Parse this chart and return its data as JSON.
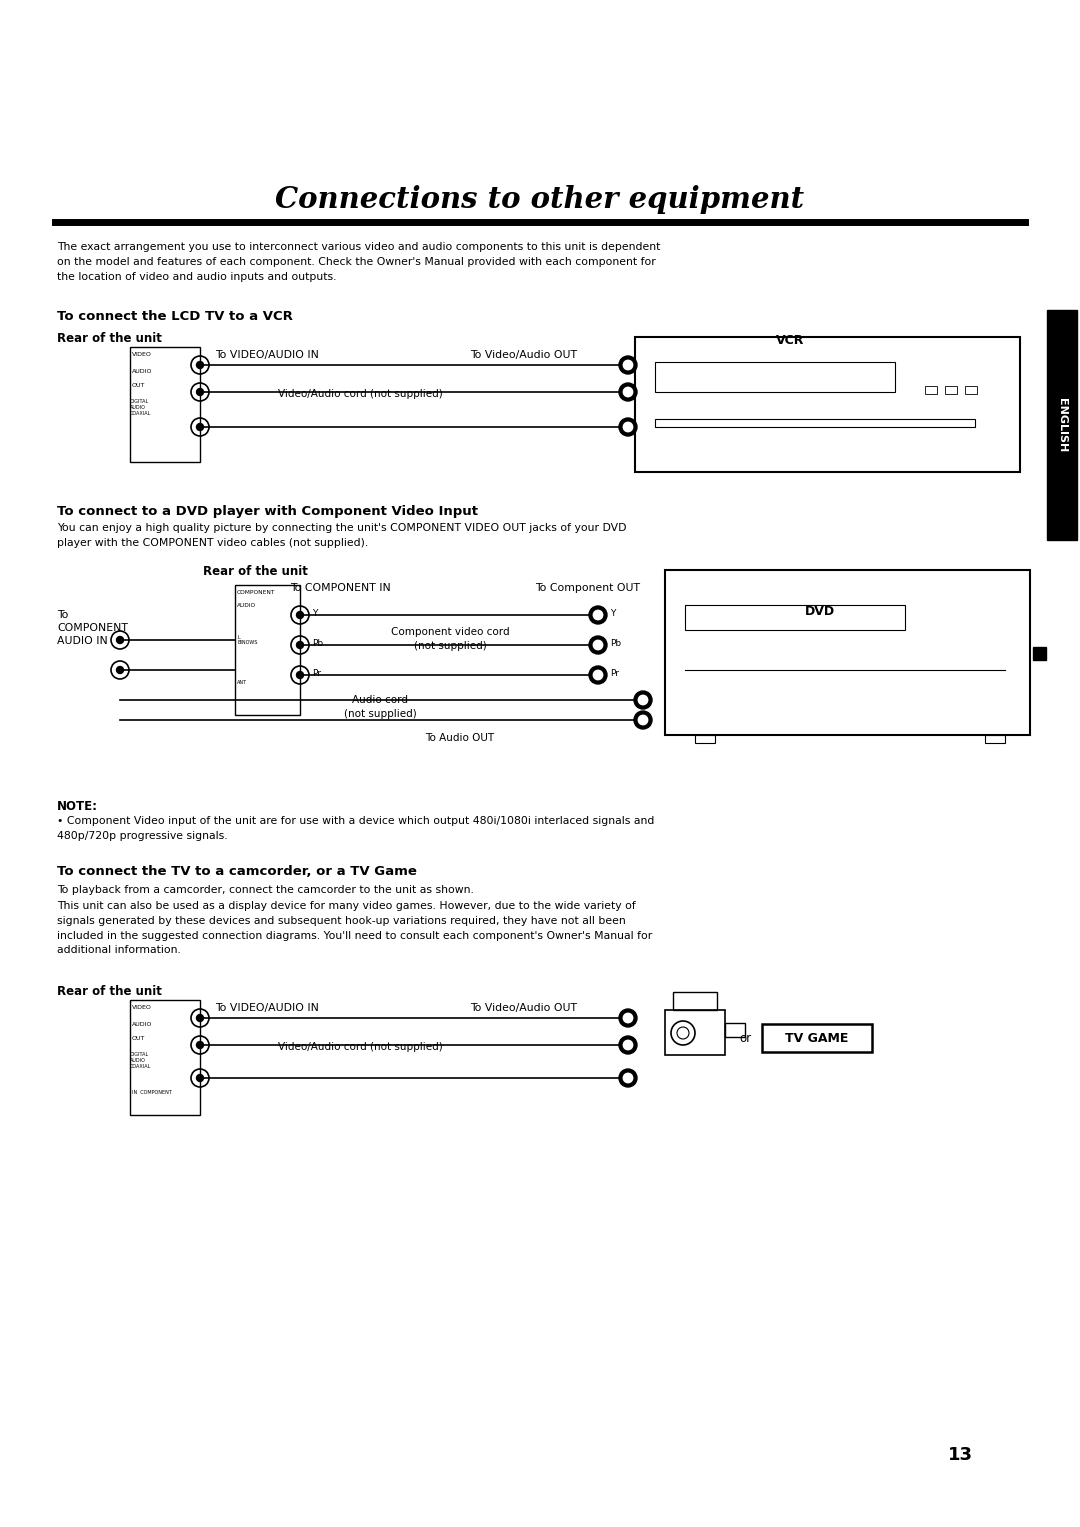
{
  "bg_color": "#ffffff",
  "title": "Connections to other equipment",
  "title_fontsize": 21,
  "page_number": "13",
  "intro_text": "The exact arrangement you use to interconnect various video and audio components to this unit is dependent\non the model and features of each component. Check the Owner's Manual provided with each component for\nthe location of video and audio inputs and outputs.",
  "section1_heading": "To connect the LCD TV to a VCR",
  "section1_rear_label": "Rear of the unit",
  "section1_vcr_label": "VCR",
  "section1_label1": "To VIDEO/AUDIO IN",
  "section1_label2": "To Video/Audio OUT",
  "section1_cord_label": "Video/Audio cord (not supplied)",
  "section2_heading": "To connect to a DVD player with Component Video Input",
  "section2_body": "You can enjoy a high quality picture by connecting the unit's COMPONENT VIDEO OUT jacks of your DVD\nplayer with the COMPONENT video cables (not supplied).",
  "section2_rear_label": "Rear of the unit",
  "section2_dvd_label": "DVD",
  "section2_label_comp_in": "To COMPONENT IN",
  "section2_label_comp_out": "To Component OUT",
  "section2_label_audio_in": "To\nCOMPONENT\nAUDIO IN",
  "section2_cord_label": "Component video cord\n(not supplied)",
  "section2_audio_cord": "Audio cord\n(not supplied)",
  "section2_audio_out": "To Audio OUT",
  "note_heading": "NOTE:",
  "note_bullet": "Component Video input of the unit are for use with a device which output 480i/1080i interlaced signals and\n480p/720p progressive signals.",
  "section3_heading": "To connect the TV to a camcorder, or a TV Game",
  "section3_body1": "To playback from a camcorder, connect the camcorder to the unit as shown.",
  "section3_body2": "This unit can also be used as a display device for many video games. However, due to the wide variety of\nsignals generated by these devices and subsequent hook-up variations required, they have not all been\nincluded in the suggested connection diagrams. You'll need to consult each component's Owner's Manual for\nadditional information.",
  "section3_rear_label": "Rear of the unit",
  "section3_label1": "To VIDEO/AUDIO IN",
  "section3_label2": "To Video/Audio OUT",
  "section3_cord_label": "Video/Audio cord (not supplied)",
  "section3_or_label": "or",
  "section3_tvgame_label": "TV GAME",
  "english_tab": "ENGLISH"
}
